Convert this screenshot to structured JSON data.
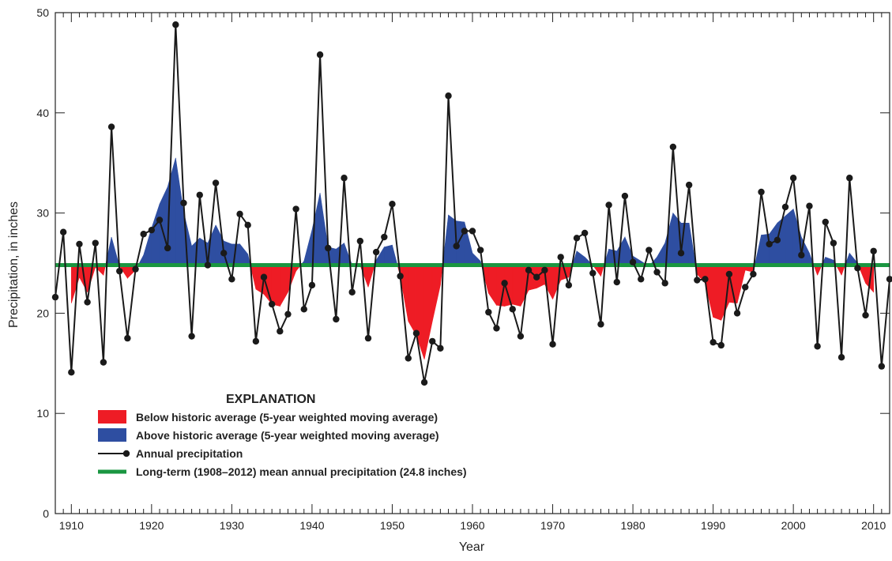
{
  "chart_data": {
    "type": "line",
    "title": "",
    "xlabel": "Year",
    "ylabel": "Precipitation, in inches",
    "xlim": [
      1908,
      2012
    ],
    "ylim": [
      0,
      50
    ],
    "x_ticks": [
      1910,
      1920,
      1930,
      1940,
      1950,
      1960,
      1970,
      1980,
      1990,
      2000,
      2010
    ],
    "y_ticks": [
      0,
      10,
      20,
      30,
      40,
      50
    ],
    "grid": false,
    "legend_position": "bottom-left",
    "legend_title": "EXPLANATION",
    "mean_value": 24.8,
    "colors": {
      "below": "#ee1c25",
      "above": "#2e4ea1",
      "annual_line": "#1a1a1a",
      "mean_line": "#1a9641"
    },
    "series": [
      {
        "name": "Annual precipitation",
        "x": [
          1908,
          1909,
          1910,
          1911,
          1912,
          1913,
          1914,
          1915,
          1916,
          1917,
          1918,
          1919,
          1920,
          1921,
          1922,
          1923,
          1924,
          1925,
          1926,
          1927,
          1928,
          1929,
          1930,
          1931,
          1932,
          1933,
          1934,
          1935,
          1936,
          1937,
          1938,
          1939,
          1940,
          1941,
          1942,
          1943,
          1944,
          1945,
          1946,
          1947,
          1948,
          1949,
          1950,
          1951,
          1952,
          1953,
          1954,
          1955,
          1956,
          1957,
          1958,
          1959,
          1960,
          1961,
          1962,
          1963,
          1964,
          1965,
          1966,
          1967,
          1968,
          1969,
          1970,
          1971,
          1972,
          1973,
          1974,
          1975,
          1976,
          1977,
          1978,
          1979,
          1980,
          1981,
          1982,
          1983,
          1984,
          1985,
          1986,
          1987,
          1988,
          1989,
          1990,
          1991,
          1992,
          1993,
          1994,
          1995,
          1996,
          1997,
          1998,
          1999,
          2000,
          2001,
          2002,
          2003,
          2004,
          2005,
          2006,
          2007,
          2008,
          2009,
          2010,
          2011,
          2012
        ],
        "values": [
          21.6,
          28.1,
          14.1,
          26.9,
          21.1,
          27.0,
          15.1,
          38.6,
          24.2,
          17.5,
          24.4,
          27.9,
          28.3,
          29.3,
          26.5,
          48.8,
          31.0,
          17.7,
          31.8,
          24.8,
          33.0,
          26.0,
          23.4,
          29.9,
          28.8,
          17.2,
          23.6,
          20.9,
          18.2,
          19.9,
          30.4,
          20.4,
          22.8,
          45.8,
          26.5,
          19.4,
          33.5,
          22.1,
          27.2,
          17.5,
          26.1,
          27.6,
          30.9,
          23.7,
          15.5,
          18.0,
          13.1,
          17.2,
          16.5,
          41.7,
          26.7,
          28.2,
          28.2,
          26.3,
          20.1,
          18.5,
          23.0,
          20.4,
          17.7,
          24.3,
          23.6,
          24.3,
          16.9,
          25.6,
          22.8,
          27.5,
          28.0,
          24.0,
          18.9,
          30.8,
          23.1,
          31.7,
          25.1,
          23.4,
          26.3,
          24.1,
          23.0,
          36.6,
          26.0,
          32.8,
          23.3,
          23.4,
          17.1,
          16.8,
          23.9,
          20.0,
          22.6,
          23.9,
          32.1,
          26.9,
          27.3,
          30.6,
          33.5,
          25.8,
          30.7,
          16.7,
          29.1,
          27.0,
          15.6,
          33.5,
          24.5,
          19.8,
          26.2,
          14.7,
          23.4
        ]
      },
      {
        "name": "5-year weighted moving average",
        "x": [
          1910,
          1911,
          1912,
          1913,
          1914,
          1915,
          1916,
          1917,
          1918,
          1919,
          1920,
          1921,
          1922,
          1923,
          1924,
          1925,
          1926,
          1927,
          1928,
          1929,
          1930,
          1931,
          1932,
          1933,
          1934,
          1935,
          1936,
          1937,
          1938,
          1939,
          1940,
          1941,
          1942,
          1943,
          1944,
          1945,
          1946,
          1947,
          1948,
          1949,
          1950,
          1951,
          1952,
          1953,
          1954,
          1955,
          1956,
          1957,
          1958,
          1959,
          1960,
          1961,
          1962,
          1963,
          1964,
          1965,
          1966,
          1967,
          1968,
          1969,
          1970,
          1971,
          1972,
          1973,
          1974,
          1975,
          1976,
          1977,
          1978,
          1979,
          1980,
          1981,
          1982,
          1983,
          1984,
          1985,
          1986,
          1987,
          1988,
          1989,
          1990,
          1991,
          1992,
          1993,
          1994,
          1995,
          1996,
          1997,
          1998,
          1999,
          2000,
          2001,
          2002,
          2003,
          2004,
          2005,
          2006,
          2007,
          2008,
          2009,
          2010
        ],
        "values": [
          21.0,
          23.6,
          22.1,
          24.6,
          23.8,
          27.6,
          24.7,
          23.5,
          24.3,
          25.8,
          28.5,
          30.9,
          32.6,
          35.5,
          30.1,
          26.7,
          27.5,
          27.0,
          28.8,
          27.2,
          26.9,
          26.9,
          25.9,
          22.4,
          21.9,
          20.9,
          20.7,
          22.1,
          24.2,
          25.2,
          28.3,
          32.0,
          26.6,
          26.4,
          27.0,
          24.8,
          24.8,
          22.6,
          25.3,
          26.6,
          26.8,
          23.7,
          19.2,
          17.8,
          15.4,
          19.2,
          22.8,
          29.8,
          29.2,
          29.1,
          26.0,
          25.2,
          22.0,
          20.8,
          20.7,
          20.9,
          20.7,
          22.3,
          22.5,
          22.9,
          21.4,
          23.3,
          23.6,
          26.2,
          25.6,
          24.8,
          23.7,
          26.4,
          26.2,
          27.6,
          25.7,
          25.2,
          24.7,
          25.6,
          27.0,
          30.0,
          29.0,
          29.0,
          23.9,
          23.0,
          19.6,
          19.3,
          21.1,
          21.0,
          24.3,
          24.1,
          27.8,
          27.9,
          29.0,
          29.7,
          30.4,
          27.6,
          26.0,
          23.8,
          25.6,
          25.3,
          23.8,
          26.0,
          25.0,
          23.0,
          22.1
        ]
      },
      {
        "name": "Long-term (1908–2012) mean annual precipitation (24.8 inches)",
        "value": 24.8
      }
    ],
    "legend": [
      {
        "symbol": "red-box",
        "label": "Below historic average (5-year weighted moving average)"
      },
      {
        "symbol": "blue-box",
        "label": "Above historic average (5-year weighted moving average)"
      },
      {
        "symbol": "line-dot",
        "label": "Annual precipitation"
      },
      {
        "symbol": "green-line",
        "label": "Long-term (1908–2012) mean annual precipitation (24.8 inches)"
      }
    ]
  }
}
